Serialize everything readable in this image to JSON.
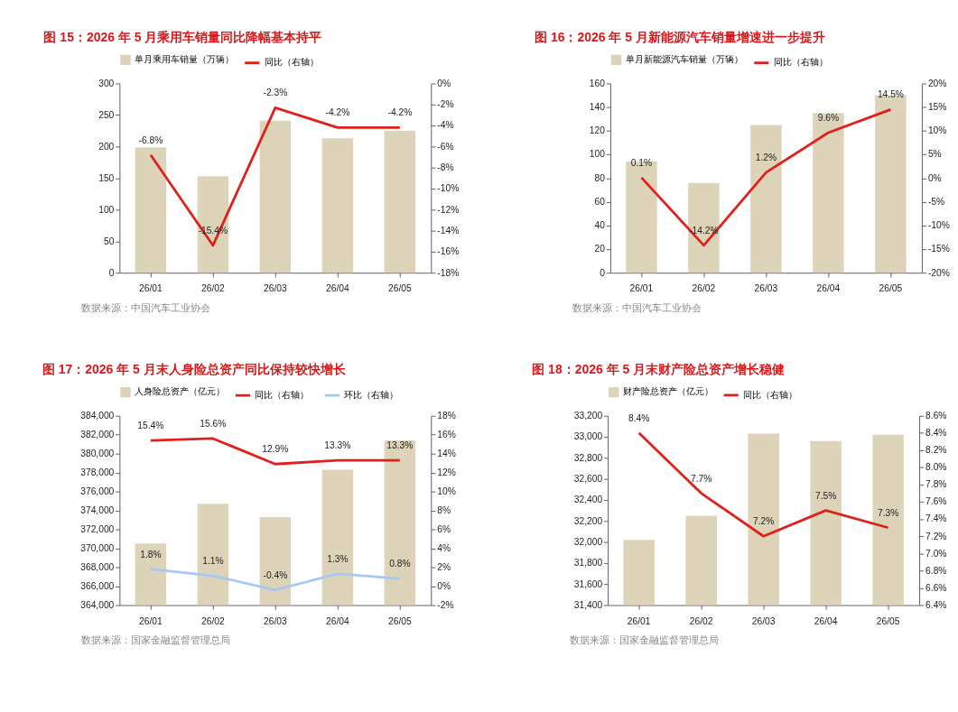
{
  "chart_data": [
    {
      "type": "bar",
      "title": "图 15：2026 年 5 月乘用车销量同比降幅基本持平",
      "categories": [
        "26/01",
        "26/02",
        "26/03",
        "26/04",
        "26/05"
      ],
      "legend": "top",
      "grid": false,
      "series": [
        {
          "name": "单月乘用车销量（万辆）",
          "color": "#ddd3b9",
          "values": [
            199,
            153,
            241,
            213,
            225
          ]
        },
        {
          "name": "同比（右轴）",
          "type": "line",
          "axis": "y2",
          "color": "#e0201b",
          "values": [
            -6.8,
            -15.4,
            -2.3,
            -4.2,
            -4.2
          ],
          "value_labels": [
            "-6.8%",
            "-15.4%",
            "-2.3%",
            "-4.2%",
            "-4.2%"
          ]
        }
      ],
      "ylim": [
        0,
        300
      ],
      "yticks": [
        0,
        50,
        100,
        150,
        200,
        250,
        300
      ],
      "y2lim": [
        -18,
        0
      ],
      "y2ticks": [
        {
          "value": -18,
          "label": "-18%"
        },
        {
          "value": -16,
          "label": "-16%"
        },
        {
          "value": -14,
          "label": "-14%"
        },
        {
          "value": -12,
          "label": "-12%"
        },
        {
          "value": -10,
          "label": "-10%"
        },
        {
          "value": -8,
          "label": "-8%"
        },
        {
          "value": -6,
          "label": "-6%"
        },
        {
          "value": -4,
          "label": "-4%"
        },
        {
          "value": -2,
          "label": "-2%"
        },
        {
          "value": 0,
          "label": "0%"
        }
      ],
      "annotations": [
        "数据来源：中国汽车工业协会"
      ]
    },
    {
      "type": "bar",
      "title": "图 16：2026 年 5 月新能源汽车销量增速进一步提升",
      "categories": [
        "26/01",
        "26/02",
        "26/03",
        "26/04",
        "26/05"
      ],
      "legend": "top",
      "grid": false,
      "series": [
        {
          "name": "单月新能源汽车销量（万辆）",
          "color": "#ddd3b9",
          "values": [
            94,
            76,
            125,
            135,
            150
          ]
        },
        {
          "name": "同比（右轴）",
          "type": "line",
          "axis": "y2",
          "color": "#e0201b",
          "values": [
            0.1,
            -14.2,
            1.2,
            9.6,
            14.5
          ],
          "value_labels": [
            "0.1%",
            "-14.2%",
            "1.2%",
            "9.6%",
            "14.5%"
          ]
        }
      ],
      "ylim": [
        0,
        160
      ],
      "yticks": [
        0,
        20,
        40,
        60,
        80,
        100,
        120,
        140,
        160
      ],
      "y2lim": [
        -20,
        20
      ],
      "y2ticks": [
        {
          "value": -20,
          "label": "-20%"
        },
        {
          "value": -15,
          "label": "-15%"
        },
        {
          "value": -10,
          "label": "-10%"
        },
        {
          "value": -5,
          "label": "-5%"
        },
        {
          "value": 0,
          "label": "0%"
        },
        {
          "value": 5,
          "label": "5%"
        },
        {
          "value": 10,
          "label": "10%"
        },
        {
          "value": 15,
          "label": "15%"
        },
        {
          "value": 20,
          "label": "20%"
        }
      ],
      "annotations": [
        "数据来源：中国汽车工业协会"
      ]
    },
    {
      "type": "bar",
      "title": "图 17：2026 年 5 月末人身险总资产同比保持较快增长",
      "categories": [
        "26/01",
        "26/02",
        "26/03",
        "26/04",
        "26/05"
      ],
      "legend": "top",
      "grid": false,
      "series": [
        {
          "name": "人身险总资产（亿元）",
          "color": "#ddd3b9",
          "values": [
            370500,
            374700,
            373300,
            378300,
            381400
          ]
        },
        {
          "name": "同比（右轴）",
          "type": "line",
          "axis": "y2",
          "color": "#e0201b",
          "values": [
            15.4,
            15.6,
            12.9,
            13.3,
            13.3
          ],
          "value_labels": [
            "15.4%",
            "15.6%",
            "12.9%",
            "13.3%",
            "13.3%"
          ]
        },
        {
          "name": "环比（右轴）",
          "type": "line",
          "axis": "y2",
          "color": "#a6c8f5",
          "values": [
            1.8,
            1.1,
            -0.4,
            1.3,
            0.8
          ],
          "value_labels": [
            "1.8%",
            "1.1%",
            "-0.4%",
            "1.3%",
            "0.8%"
          ]
        }
      ],
      "ylim": [
        364000,
        384000
      ],
      "yticks": [
        {
          "value": 364000,
          "label": "364,000"
        },
        {
          "value": 366000,
          "label": "366,000"
        },
        {
          "value": 368000,
          "label": "368,000"
        },
        {
          "value": 370000,
          "label": "370,000"
        },
        {
          "value": 372000,
          "label": "372,000"
        },
        {
          "value": 374000,
          "label": "374,000"
        },
        {
          "value": 376000,
          "label": "376,000"
        },
        {
          "value": 378000,
          "label": "378,000"
        },
        {
          "value": 380000,
          "label": "380,000"
        },
        {
          "value": 382000,
          "label": "382,000"
        },
        {
          "value": 384000,
          "label": "384,000"
        }
      ],
      "y2lim": [
        -2,
        18
      ],
      "y2ticks": [
        {
          "value": -2,
          "label": "-2%"
        },
        {
          "value": 0,
          "label": "0%"
        },
        {
          "value": 2,
          "label": "2%"
        },
        {
          "value": 4,
          "label": "4%"
        },
        {
          "value": 6,
          "label": "6%"
        },
        {
          "value": 8,
          "label": "8%"
        },
        {
          "value": 10,
          "label": "10%"
        },
        {
          "value": 12,
          "label": "12%"
        },
        {
          "value": 14,
          "label": "14%"
        },
        {
          "value": 16,
          "label": "16%"
        },
        {
          "value": 18,
          "label": "18%"
        }
      ],
      "annotations": [
        "数据来源：国家金融监督管理总局"
      ]
    },
    {
      "type": "bar",
      "title": "图 18：2026 年 5 月末财产险总资产增长稳健",
      "categories": [
        "26/01",
        "26/02",
        "26/03",
        "26/04",
        "26/05"
      ],
      "legend": "top",
      "grid": false,
      "series": [
        {
          "name": "财产险总资产（亿元）",
          "color": "#ddd3b9",
          "values": [
            32020,
            32250,
            33030,
            32960,
            33020
          ]
        },
        {
          "name": "同比（右轴）",
          "type": "line",
          "axis": "y2",
          "color": "#e0201b",
          "values": [
            8.4,
            7.7,
            7.2,
            7.5,
            7.3
          ],
          "value_labels": [
            "8.4%",
            "7.7%",
            "7.2%",
            "7.5%",
            "7.3%"
          ]
        }
      ],
      "ylim": [
        31400,
        33200
      ],
      "yticks": [
        {
          "value": 31400,
          "label": "31,400"
        },
        {
          "value": 31600,
          "label": "31,600"
        },
        {
          "value": 31800,
          "label": "31,800"
        },
        {
          "value": 32000,
          "label": "32,000"
        },
        {
          "value": 32200,
          "label": "32,200"
        },
        {
          "value": 32400,
          "label": "32,400"
        },
        {
          "value": 32600,
          "label": "32,600"
        },
        {
          "value": 32800,
          "label": "32,800"
        },
        {
          "value": 33000,
          "label": "33,000"
        },
        {
          "value": 33200,
          "label": "33,200"
        }
      ],
      "y2lim": [
        6.4,
        8.6
      ],
      "y2ticks": [
        {
          "value": 6.4,
          "label": "6.4%"
        },
        {
          "value": 6.6,
          "label": "6.6%"
        },
        {
          "value": 6.8,
          "label": "6.8%"
        },
        {
          "value": 7.0,
          "label": "7.0%"
        },
        {
          "value": 7.2,
          "label": "7.2%"
        },
        {
          "value": 7.4,
          "label": "7.4%"
        },
        {
          "value": 7.6,
          "label": "7.6%"
        },
        {
          "value": 7.8,
          "label": "7.8%"
        },
        {
          "value": 8.0,
          "label": "8.0%"
        },
        {
          "value": 8.2,
          "label": "8.2%"
        },
        {
          "value": 8.4,
          "label": "8.4%"
        },
        {
          "value": 8.6,
          "label": "8.6%"
        }
      ],
      "annotations": [
        "数据来源：国家金融监督管理总局"
      ]
    }
  ]
}
